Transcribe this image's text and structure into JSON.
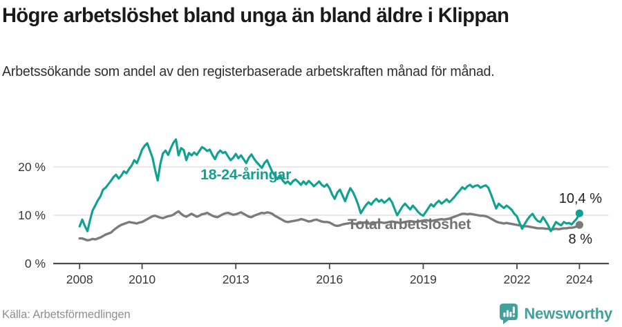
{
  "header": {
    "title": "Högre arbetslöshet bland unga än bland äldre i Klippan",
    "subtitle": "Arbetssökande som andel av den registerbaserade arbetskraften månad för månad."
  },
  "footer": {
    "source": "Källa: Arbetsförmedlingen",
    "brand_name": "Newsworthy",
    "brand_icon": "newsworthy-barchart-speech-bubble-icon"
  },
  "colors": {
    "youth_line": "#10a192",
    "total_line": "#7b7b7b",
    "total_label": "#737373",
    "grid": "#dcdcdc",
    "axis": "#4a4a4a",
    "axis_text": "#383838",
    "end_label_text": "#212121",
    "title_text": "#1a1a1a",
    "source_text": "#8f8f8f",
    "brand_teal": "#43a09b",
    "background": "#ffffff"
  },
  "chart_data": {
    "type": "line",
    "title": "Högre arbetslöshet bland unga än bland äldre i Klippan",
    "subtitle": "Arbetssökande som andel av den registerbaserade arbetskraften månad för månad.",
    "unit": "%",
    "x_start": "2008-01",
    "x_step_months": 1,
    "x_end": "2024-01",
    "xlabel": "",
    "ylabel": "",
    "ylim": [
      0,
      27
    ],
    "grid": "horizontal",
    "gridlines_at": [
      10,
      20
    ],
    "y_ticks": [
      {
        "value": 0,
        "label": "0 %"
      },
      {
        "value": 10,
        "label": "10 %"
      },
      {
        "value": 20,
        "label": "20 %"
      }
    ],
    "x_ticks": [
      {
        "year": 2008,
        "label": "2008"
      },
      {
        "year": 2010,
        "label": "2010"
      },
      {
        "year": 2013,
        "label": "2013"
      },
      {
        "year": 2016,
        "label": "2016"
      },
      {
        "year": 2019,
        "label": "2019"
      },
      {
        "year": 2022,
        "label": "2022"
      },
      {
        "year": 2024,
        "label": "2024"
      }
    ],
    "legend_position": "inline-labels",
    "series": [
      {
        "name": "Total arbetslöshet",
        "color": "#7b7b7b",
        "end_label": "8 %",
        "end_value": 8.0,
        "values": [
          5.2,
          5.2,
          5.0,
          4.8,
          4.9,
          5.1,
          5.0,
          5.2,
          5.4,
          5.7,
          6.0,
          6.2,
          6.4,
          6.9,
          7.3,
          7.7,
          8.0,
          8.2,
          8.4,
          8.6,
          8.5,
          8.4,
          8.3,
          8.5,
          8.6,
          8.9,
          9.2,
          9.5,
          9.8,
          9.9,
          9.7,
          9.5,
          9.4,
          9.6,
          9.8,
          9.9,
          10.1,
          10.5,
          10.8,
          10.3,
          9.9,
          9.7,
          10.0,
          10.3,
          10.0,
          9.7,
          9.9,
          10.2,
          10.3,
          10.5,
          10.2,
          9.9,
          9.7,
          9.6,
          9.9,
          10.2,
          10.4,
          10.5,
          10.3,
          10.1,
          10.2,
          10.4,
          10.6,
          10.3,
          10.0,
          9.7,
          9.6,
          9.9,
          10.1,
          10.3,
          10.5,
          10.4,
          10.6,
          10.5,
          10.3,
          9.9,
          9.6,
          9.3,
          9.0,
          8.7,
          8.6,
          8.7,
          8.8,
          8.9,
          9.0,
          9.2,
          9.1,
          8.9,
          8.7,
          8.8,
          9.0,
          9.1,
          8.9,
          8.7,
          8.6,
          8.6,
          8.5,
          8.2,
          7.9,
          7.8,
          7.9,
          8.1,
          8.2,
          8.3,
          8.4,
          8.3,
          8.2,
          8.3,
          8.4,
          8.5,
          8.4,
          8.3,
          8.2,
          8.3,
          8.5,
          8.6,
          8.5,
          8.4,
          8.5,
          8.6,
          8.7,
          8.6,
          8.5,
          8.4,
          8.5,
          8.6,
          8.7,
          8.8,
          8.7,
          8.6,
          8.7,
          8.8,
          8.9,
          9.0,
          8.9,
          8.8,
          8.9,
          9.0,
          9.1,
          9.2,
          9.1,
          9.2,
          9.3,
          9.5,
          9.7,
          9.9,
          10.1,
          10.3,
          10.3,
          10.2,
          10.3,
          10.2,
          10.1,
          10.0,
          9.9,
          9.9,
          9.8,
          9.6,
          9.3,
          9.0,
          8.7,
          8.5,
          8.4,
          8.3,
          8.4,
          8.3,
          8.2,
          8.1,
          8.0,
          7.9,
          7.8,
          7.7,
          7.7,
          7.6,
          7.5,
          7.4,
          7.3,
          7.3,
          7.3,
          7.2,
          7.2,
          7.0,
          7.1,
          7.2,
          7.1,
          7.2,
          7.3,
          7.3,
          7.4,
          7.4,
          7.5,
          7.7,
          8.0
        ]
      },
      {
        "name": "18-24-åringar",
        "color": "#10a192",
        "end_label": "10,4 %",
        "end_value": 10.4,
        "values": [
          7.7,
          9.1,
          7.8,
          6.7,
          9.0,
          11.0,
          12.0,
          13.1,
          13.9,
          15.3,
          15.7,
          16.4,
          17.1,
          17.9,
          18.4,
          17.6,
          18.2,
          19.1,
          18.7,
          19.6,
          20.3,
          21.4,
          20.8,
          22.1,
          23.6,
          24.4,
          24.9,
          23.4,
          21.9,
          19.4,
          17.2,
          20.6,
          22.8,
          23.4,
          22.5,
          23.8,
          25.0,
          25.7,
          22.4,
          23.9,
          23.5,
          21.4,
          22.9,
          22.4,
          23.0,
          22.5,
          23.3,
          24.1,
          23.8,
          23.3,
          23.6,
          22.5,
          21.6,
          22.8,
          23.4,
          22.9,
          23.1,
          22.2,
          21.4,
          21.9,
          22.7,
          21.8,
          22.4,
          21.6,
          20.8,
          21.9,
          22.6,
          21.7,
          21.0,
          20.4,
          19.8,
          20.8,
          21.4,
          20.2,
          19.0,
          18.2,
          17.5,
          18.3,
          17.2,
          16.6,
          17.0,
          16.4,
          17.1,
          17.4,
          16.9,
          16.3,
          17.0,
          16.4,
          17.1,
          16.6,
          16.0,
          16.5,
          17.0,
          16.3,
          15.9,
          16.4,
          15.6,
          14.3,
          13.4,
          14.7,
          15.3,
          14.1,
          12.9,
          14.4,
          15.6,
          14.8,
          13.6,
          12.2,
          10.4,
          11.3,
          12.1,
          12.7,
          12.2,
          12.9,
          13.4,
          12.8,
          13.2,
          12.6,
          13.0,
          13.5,
          12.7,
          11.3,
          10.0,
          10.9,
          11.8,
          12.4,
          11.8,
          11.2,
          12.0,
          11.4,
          10.7,
          10.2,
          9.9,
          10.7,
          11.5,
          12.3,
          11.8,
          12.5,
          13.0,
          12.4,
          12.8,
          13.3,
          12.7,
          13.2,
          13.8,
          14.5,
          15.1,
          15.8,
          15.4,
          16.0,
          16.3,
          15.8,
          16.1,
          16.2,
          15.7,
          16.0,
          16.2,
          15.7,
          14.4,
          12.9,
          11.4,
          12.4,
          11.9,
          11.5,
          12.0,
          11.6,
          11.1,
          10.3,
          9.8,
          8.4,
          7.2,
          8.2,
          9.1,
          9.8,
          10.3,
          9.4,
          8.8,
          8.6,
          9.6,
          8.8,
          7.9,
          6.7,
          7.6,
          8.6,
          8.2,
          7.9,
          8.6,
          8.3,
          8.4,
          8.1,
          8.7,
          9.3,
          10.4
        ]
      }
    ]
  }
}
